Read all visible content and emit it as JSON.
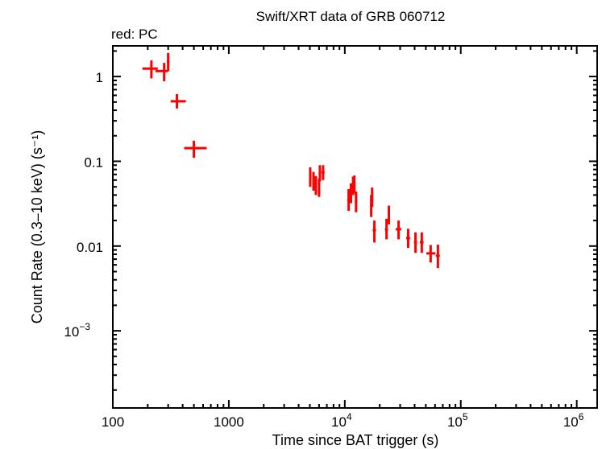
{
  "chart_data": {
    "type": "scatter",
    "title": "Swift/XRT data of GRB 060712",
    "subtitle": "red: PC",
    "xlabel": "Time since BAT trigger (s)",
    "ylabel": "Count Rate (0.3–10 keV) (s⁻¹)",
    "xscale": "log",
    "yscale": "log",
    "xlim": [
      100,
      1500000
    ],
    "ylim": [
      0.000123,
      2.3
    ],
    "grid": false,
    "x_ticks": [
      {
        "v": 100,
        "label": "100"
      },
      {
        "v": 1000,
        "label": "1000"
      },
      {
        "v": 10000,
        "label": "10",
        "exp": "4"
      },
      {
        "v": 100000,
        "label": "10",
        "exp": "5"
      },
      {
        "v": 1000000,
        "label": "10",
        "exp": "6"
      }
    ],
    "y_ticks": [
      {
        "v": 1,
        "label": "1"
      },
      {
        "v": 0.1,
        "label": "0.1"
      },
      {
        "v": 0.01,
        "label": "0.01"
      },
      {
        "v": 0.001,
        "label": "10",
        "exp": "−3"
      }
    ],
    "series": [
      {
        "color": "#ff0000",
        "columns": [
          "t",
          "t_lo",
          "t_hi",
          "rate",
          "rate_lo",
          "rate_hi"
        ],
        "points": [
          [
            215,
            180,
            244,
            1.24,
            0.95,
            1.55
          ],
          [
            277,
            233,
            296,
            1.16,
            0.88,
            1.45
          ],
          [
            300,
            292,
            308,
            1.5,
            1.15,
            1.9
          ],
          [
            357,
            315,
            426,
            0.51,
            0.42,
            0.62
          ],
          [
            500,
            412,
            645,
            0.143,
            0.11,
            0.175
          ],
          [
            5035,
            4950,
            5120,
            0.067,
            0.05,
            0.085
          ],
          [
            5370,
            5290,
            5450,
            0.059,
            0.045,
            0.075
          ],
          [
            5630,
            5550,
            5720,
            0.053,
            0.04,
            0.067
          ],
          [
            6000,
            5900,
            6100,
            0.05,
            0.038,
            0.063
          ],
          [
            6100,
            5950,
            6250,
            0.073,
            0.058,
            0.09
          ],
          [
            6500,
            6300,
            6700,
            0.074,
            0.06,
            0.09
          ],
          [
            10800,
            10500,
            11100,
            0.035,
            0.026,
            0.047
          ],
          [
            11300,
            11100,
            11500,
            0.042,
            0.032,
            0.055
          ],
          [
            11800,
            11600,
            12000,
            0.053,
            0.04,
            0.066
          ],
          [
            12100,
            11900,
            12300,
            0.054,
            0.042,
            0.068
          ],
          [
            12500,
            12200,
            12800,
            0.034,
            0.025,
            0.044
          ],
          [
            16900,
            16500,
            17300,
            0.03,
            0.022,
            0.04
          ],
          [
            17200,
            16900,
            17500,
            0.038,
            0.029,
            0.049
          ],
          [
            18000,
            17400,
            18600,
            0.0154,
            0.011,
            0.02
          ],
          [
            22900,
            22200,
            23600,
            0.0157,
            0.012,
            0.021
          ],
          [
            24000,
            23500,
            24500,
            0.024,
            0.018,
            0.03
          ],
          [
            29100,
            27500,
            30700,
            0.0158,
            0.012,
            0.02
          ],
          [
            35200,
            33800,
            36600,
            0.0124,
            0.0095,
            0.016
          ],
          [
            40700,
            39500,
            41900,
            0.0111,
            0.0083,
            0.0145
          ],
          [
            46100,
            44400,
            47800,
            0.0111,
            0.0083,
            0.0145
          ],
          [
            55000,
            50500,
            60500,
            0.0082,
            0.0064,
            0.0103
          ],
          [
            63500,
            61000,
            66000,
            0.0077,
            0.0055,
            0.0104
          ]
        ]
      }
    ]
  }
}
